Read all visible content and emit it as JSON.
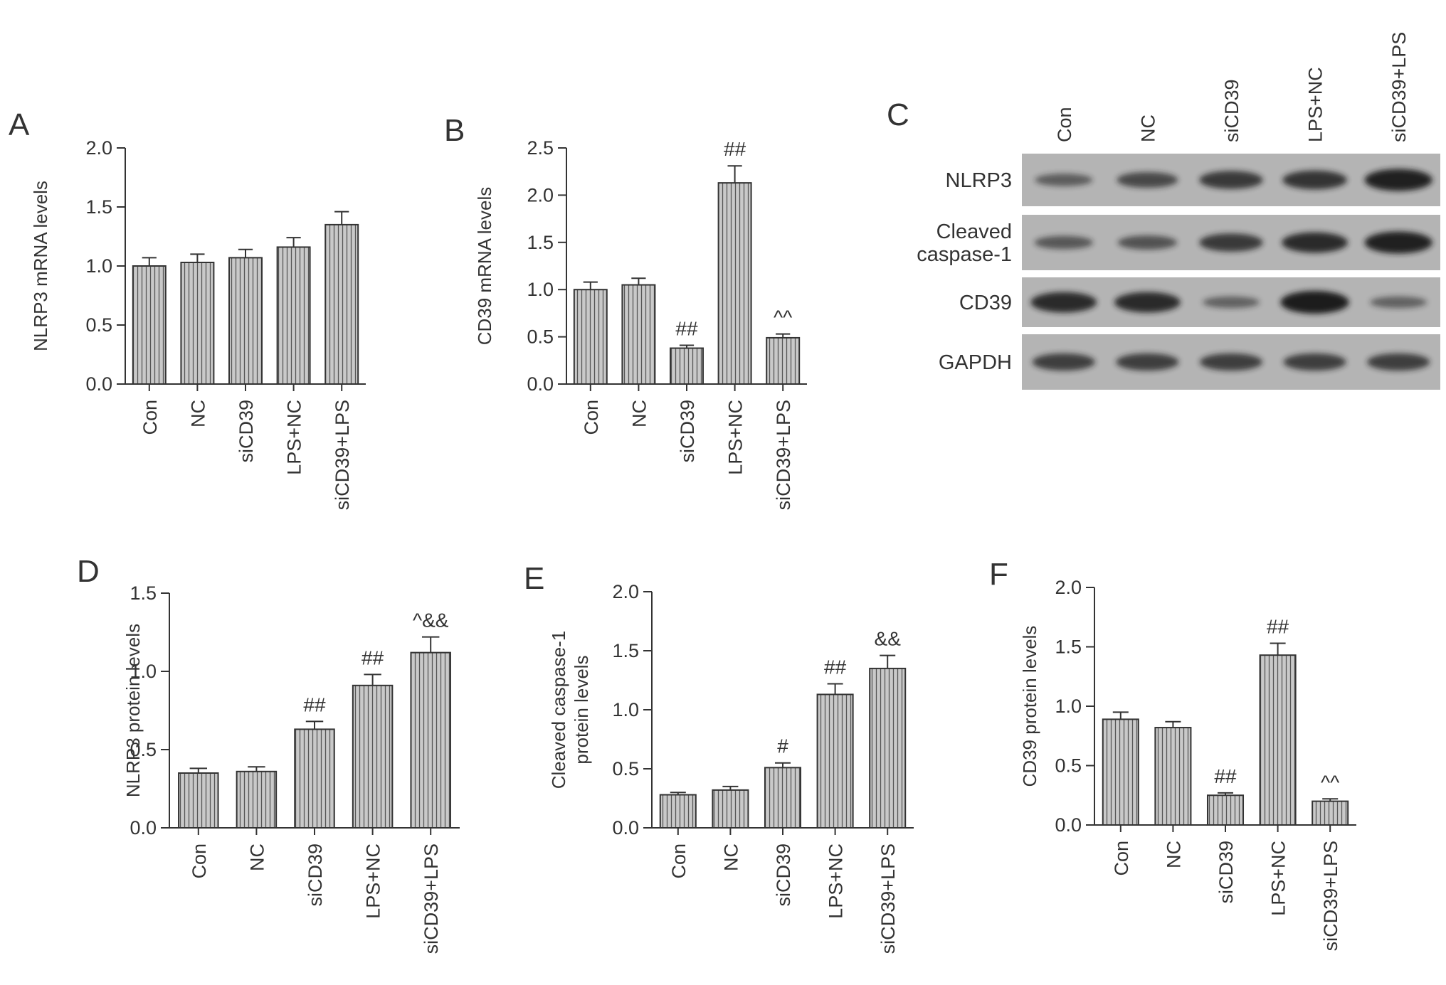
{
  "figure": {
    "width": 2032,
    "height": 1385
  },
  "chart_data": [
    {
      "panel": "A",
      "type": "bar",
      "categories": [
        "Con",
        "NC",
        "siCD39",
        "LPS+NC",
        "siCD39+LPS"
      ],
      "values": [
        1.0,
        1.03,
        1.07,
        1.16,
        1.35
      ],
      "errors": [
        0.07,
        0.07,
        0.07,
        0.08,
        0.11
      ],
      "annotations": [
        "",
        "",
        "",
        "",
        ""
      ],
      "ylabel": "NLRP3 mRNA levels",
      "ylim": [
        0,
        2.0
      ],
      "yticks": [
        "0.0",
        "0.5",
        "1.0",
        "1.5",
        "2.0"
      ],
      "ytick_values": [
        0,
        0.5,
        1.0,
        1.5,
        2.0
      ]
    },
    {
      "panel": "B",
      "type": "bar",
      "categories": [
        "Con",
        "NC",
        "siCD39",
        "LPS+NC",
        "siCD39+LPS"
      ],
      "values": [
        1.0,
        1.05,
        0.38,
        2.13,
        0.49
      ],
      "errors": [
        0.08,
        0.07,
        0.03,
        0.18,
        0.04
      ],
      "annotations": [
        "",
        "",
        "##",
        "##",
        "^^"
      ],
      "ylabel": "CD39 mRNA levels",
      "ylim": [
        0,
        2.5
      ],
      "yticks": [
        "0.0",
        "0.5",
        "1.0",
        "1.5",
        "2.0",
        "2.5"
      ],
      "ytick_values": [
        0,
        0.5,
        1.0,
        1.5,
        2.0,
        2.5
      ]
    },
    {
      "panel": "D",
      "type": "bar",
      "categories": [
        "Con",
        "NC",
        "siCD39",
        "LPS+NC",
        "siCD39+LPS"
      ],
      "values": [
        0.35,
        0.36,
        0.63,
        0.91,
        1.12
      ],
      "errors": [
        0.03,
        0.03,
        0.05,
        0.07,
        0.1
      ],
      "annotations": [
        "",
        "",
        "##",
        "##",
        "^&&"
      ],
      "ylabel": "NLRP3 protein levels",
      "ylim": [
        0,
        1.5
      ],
      "yticks": [
        "0.0",
        "0.5",
        "1.0",
        "1.5"
      ],
      "ytick_values": [
        0,
        0.5,
        1.0,
        1.5
      ]
    },
    {
      "panel": "E",
      "type": "bar",
      "categories": [
        "Con",
        "NC",
        "siCD39",
        "LPS+NC",
        "siCD39+LPS"
      ],
      "values": [
        0.28,
        0.32,
        0.51,
        1.13,
        1.35
      ],
      "errors": [
        0.02,
        0.03,
        0.04,
        0.09,
        0.11
      ],
      "annotations": [
        "",
        "",
        "#",
        "##",
        "&&"
      ],
      "ylabel": "Cleaved caspase-1 protein levels",
      "ylabel_lines": [
        "Cleaved caspase-1",
        "protein levels"
      ],
      "ylim": [
        0,
        2.0
      ],
      "yticks": [
        "0.0",
        "0.5",
        "1.0",
        "1.5",
        "2.0"
      ],
      "ytick_values": [
        0,
        0.5,
        1.0,
        1.5,
        2.0
      ]
    },
    {
      "panel": "F",
      "type": "bar",
      "categories": [
        "Con",
        "NC",
        "siCD39",
        "LPS+NC",
        "siCD39+LPS"
      ],
      "values": [
        0.89,
        0.82,
        0.25,
        1.43,
        0.2
      ],
      "errors": [
        0.06,
        0.05,
        0.02,
        0.1,
        0.02
      ],
      "annotations": [
        "",
        "",
        "##",
        "##",
        "^^"
      ],
      "ylabel": "CD39 protein levels",
      "ylim": [
        0,
        2.0
      ],
      "yticks": [
        "0.0",
        "0.5",
        "1.0",
        "1.5",
        "2.0"
      ],
      "ytick_values": [
        0,
        0.5,
        1.0,
        1.5,
        2.0
      ]
    }
  ],
  "blot": {
    "panel": "C",
    "lanes": [
      "Con",
      "NC",
      "siCD39",
      "LPS+NC",
      "siCD39+LPS"
    ],
    "rows": [
      {
        "label": "NLRP3",
        "label_lines": [
          "NLRP3"
        ],
        "intensity": [
          0.35,
          0.55,
          0.7,
          0.75,
          0.95
        ]
      },
      {
        "label": "Cleaved caspase-1",
        "label_lines": [
          "Cleaved",
          "caspase-1"
        ],
        "intensity": [
          0.4,
          0.45,
          0.7,
          0.85,
          0.95
        ]
      },
      {
        "label": "CD39",
        "label_lines": [
          "CD39"
        ],
        "intensity": [
          0.85,
          0.85,
          0.3,
          1.0,
          0.3
        ]
      },
      {
        "label": "GAPDH",
        "label_lines": [
          "GAPDH"
        ],
        "intensity": [
          0.65,
          0.65,
          0.65,
          0.65,
          0.65
        ]
      }
    ]
  },
  "colors": {
    "bar_fill": "#c9c9c9",
    "bar_hatch": "#555555",
    "axis": "#333333",
    "blot_bg": "#b4b4b4",
    "band": "#1e1e1e"
  }
}
